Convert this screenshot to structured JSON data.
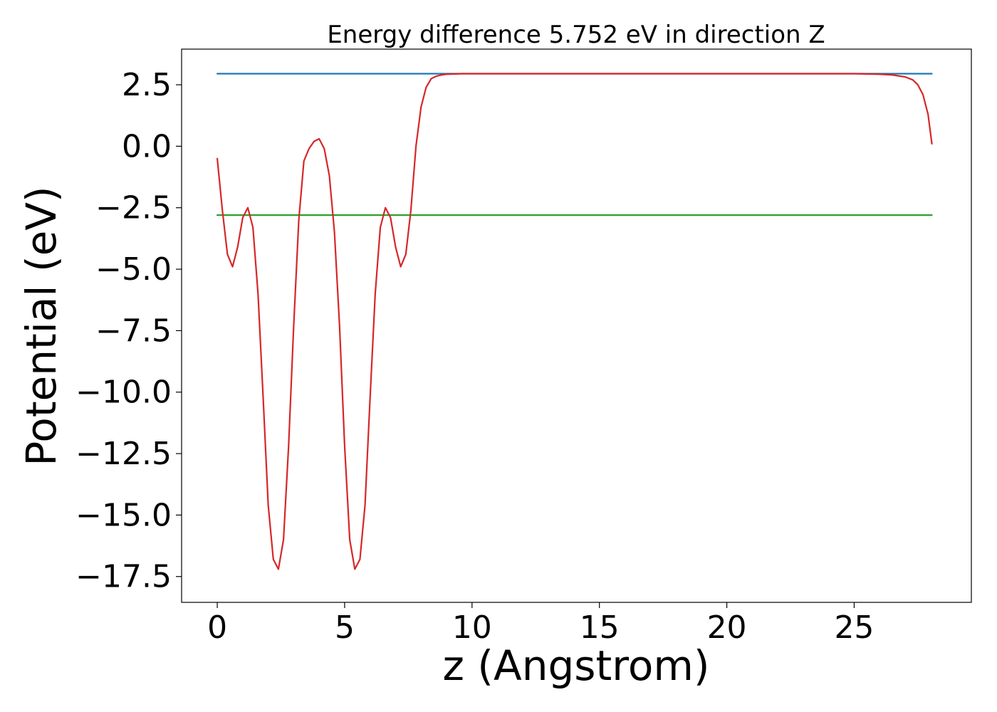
{
  "chart_data": {
    "type": "line",
    "title": "Energy difference 5.752 eV in direction Z",
    "xlabel": "z (Angstrom)",
    "ylabel": "Potential (eV)",
    "xlim": [
      -1.4,
      29.6
    ],
    "ylim": [
      -18.55,
      3.95
    ],
    "x_ticks": [
      0,
      5,
      10,
      15,
      20,
      25
    ],
    "x_tick_labels": [
      "0",
      "5",
      "10",
      "15",
      "20",
      "25"
    ],
    "y_ticks": [
      2.5,
      0.0,
      -2.5,
      -5.0,
      -7.5,
      -10.0,
      -12.5,
      -15.0,
      -17.5
    ],
    "y_tick_labels": [
      "2.5",
      "0.0",
      "−2.5",
      "−5.0",
      "−7.5",
      "−10.0",
      "−12.5",
      "−15.0",
      "−17.5"
    ],
    "grid": false,
    "series": [
      {
        "color": "#d62728",
        "x": [
          0.0,
          0.2,
          0.4,
          0.6,
          0.8,
          1.0,
          1.2,
          1.4,
          1.6,
          1.8,
          2.0,
          2.2,
          2.4,
          2.6,
          2.8,
          3.0,
          3.2,
          3.4,
          3.6,
          3.8,
          4.0,
          4.2,
          4.4,
          4.6,
          4.8,
          5.0,
          5.2,
          5.4,
          5.6,
          5.8,
          6.0,
          6.2,
          6.4,
          6.6,
          6.8,
          7.0,
          7.2,
          7.4,
          7.6,
          7.8,
          8.0,
          8.2,
          8.4,
          8.6,
          8.8,
          9.0,
          9.3,
          9.6,
          10.0,
          11.0,
          12.0,
          15.0,
          20.0,
          25.0,
          26.0,
          26.5,
          27.0,
          27.3,
          27.5,
          27.7,
          27.9,
          28.05
        ],
        "values": [
          -0.5,
          -2.6,
          -4.4,
          -4.9,
          -4.1,
          -2.9,
          -2.5,
          -3.3,
          -6.0,
          -10.2,
          -14.6,
          -16.8,
          -17.2,
          -16.0,
          -12.2,
          -7.3,
          -3.0,
          -0.6,
          -0.1,
          0.2,
          0.3,
          -0.1,
          -1.2,
          -3.5,
          -7.3,
          -12.2,
          -16.0,
          -17.2,
          -16.8,
          -14.6,
          -10.2,
          -6.0,
          -3.3,
          -2.5,
          -2.9,
          -4.1,
          -4.9,
          -4.4,
          -2.6,
          0.0,
          1.6,
          2.4,
          2.75,
          2.85,
          2.9,
          2.93,
          2.94,
          2.95,
          2.95,
          2.95,
          2.95,
          2.95,
          2.95,
          2.95,
          2.93,
          2.9,
          2.82,
          2.7,
          2.5,
          2.1,
          1.3,
          0.1
        ]
      },
      {
        "color": "#1f77b4",
        "x": [
          0.0,
          28.05
        ],
        "values": [
          2.95,
          2.95
        ]
      },
      {
        "color": "#2ca02c",
        "x": [
          0.0,
          28.05
        ],
        "values": [
          -2.8,
          -2.8
        ]
      }
    ]
  }
}
